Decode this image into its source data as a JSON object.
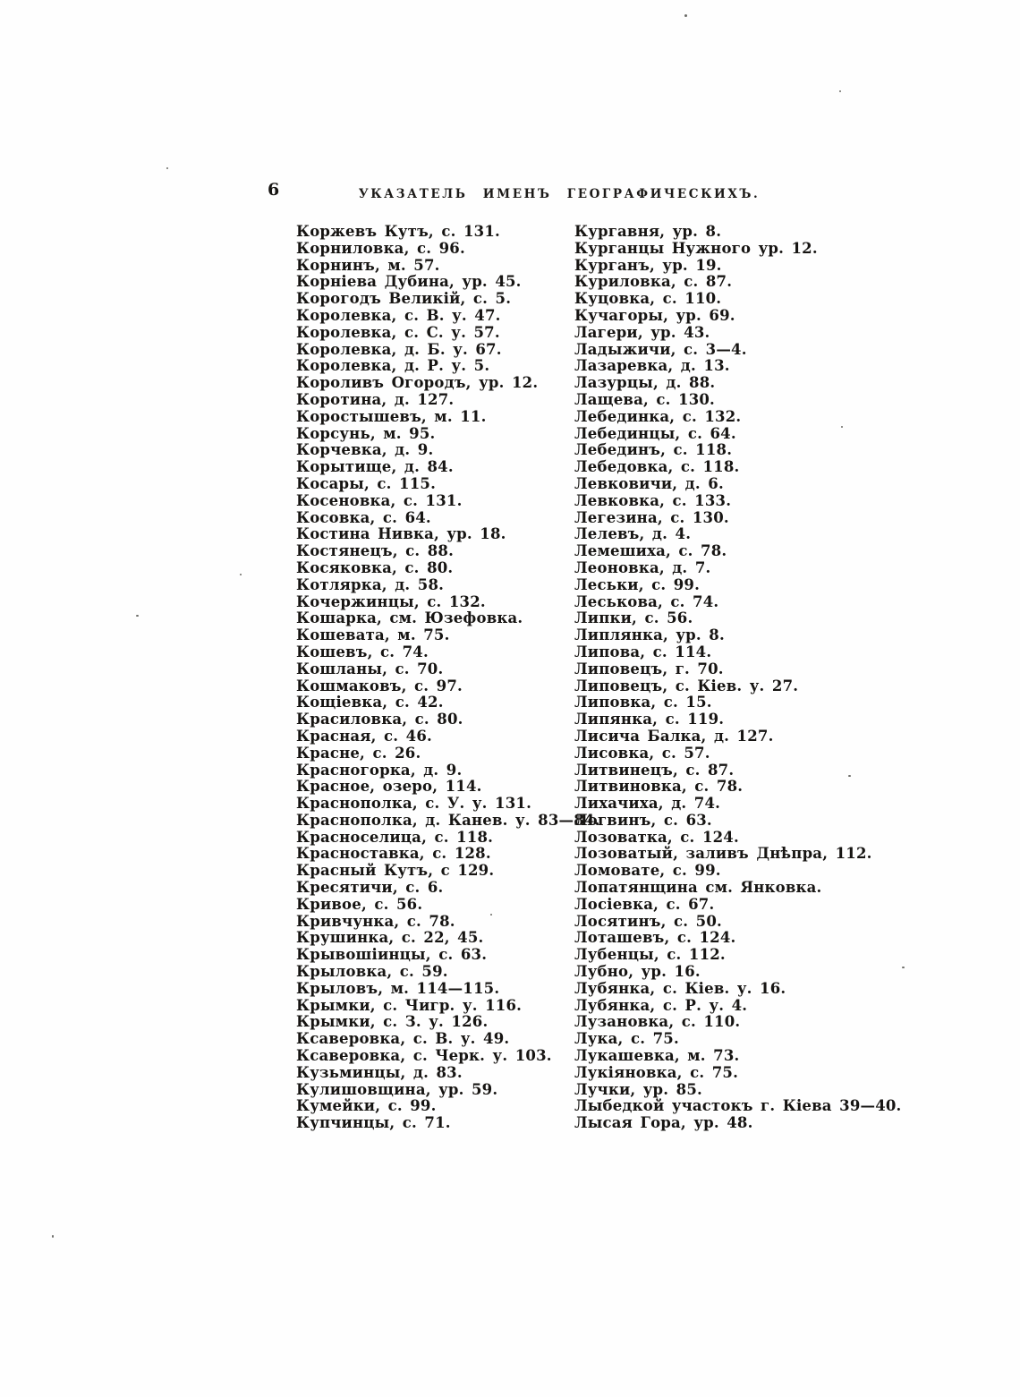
{
  "page": {
    "number": "6",
    "header": "УКАЗАТЕЛЬ ИМЕНЪ ГЕОГРАФИЧЕСКИХЪ."
  },
  "index": {
    "left_column": [
      "Коржевъ Кутъ, с. 131.",
      "Корниловка, с. 96.",
      "Корнинъ, м. 57.",
      "Корніева Дубина, ур. 45.",
      "Корогодъ Великій, с. 5.",
      "Королевка, с. В. у. 47.",
      "Королевка, с. С. у. 57.",
      "Королевка, д. Б. у. 67.",
      "Королевка, д. Р. у. 5.",
      "Короливъ Огородъ, ур. 12.",
      "Коротина, д. 127.",
      "Коростышевъ, м. 11.",
      "Корсунь, м. 95.",
      "Корчевка, д. 9.",
      "Корытище, д. 84.",
      "Косары, с. 115.",
      "Косеновка, с. 131.",
      "Косовка, с. 64.",
      "Костина Нивка, ур. 18.",
      "Костянецъ, с. 88.",
      "Косяковка, с. 80.",
      "Котлярка, д. 58.",
      "Кочержинцы, с. 132.",
      "Кошарка, см. Юзефовка.",
      "Кошевата, м. 75.",
      "Кошевъ, с. 74.",
      "Кошланы, с. 70.",
      "Кошмаковъ, с. 97.",
      "Кощіевка, с. 42.",
      "Красиловка, с. 80.",
      "Красная, с. 46.",
      "Красне, с. 26.",
      "Красногорка, д. 9.",
      "Красное, озеро, 114.",
      "Краснополка, с. У. у. 131.",
      "Краснополка, д. Канев. у. 83—84.",
      "Красноселица, с. 118.",
      "Красноставка, с. 128.",
      "Красный Кутъ, с 129.",
      "Кресятичи, с. 6.",
      "Кривое, с. 56.",
      "Кривчунка, с. 78.",
      "Крушинка, с. 22, 45.",
      "Крывошіинцы, с. 63.",
      "Крыловка, с. 59.",
      "Крыловъ, м. 114—115.",
      "Крымки, с. Чигр. у. 116.",
      "Крымки, с. З. у. 126.",
      "Ксаверовка, с. В. у. 49.",
      "Ксаверовка, с. Черк. у. 103.",
      "Кузьминцы, д. 83.",
      "Кулишовщина, ур. 59.",
      "Кумейки, с. 99.",
      "Купчинцы, с. 71."
    ],
    "right_column": [
      "Кургавня, ур. 8.",
      "Курганцы Нужного ур. 12.",
      "Курганъ, ур. 19.",
      "Куриловка, с. 87.",
      "Куцовка, с. 110.",
      "Кучагоры, ур. 69.",
      "Лагери, ур. 43.",
      "Ладыжичи, с. 3—4.",
      "Лазаревка, д. 13.",
      "Лазурцы, д. 88.",
      "Лащева, с. 130.",
      "Лебединка, с. 132.",
      "Лебединцы, с. 64.",
      "Лебединъ, с. 118.",
      "Лебедовка, с. 118.",
      "Левковичи, д. 6.",
      "Левковка, с. 133.",
      "Легезина, с. 130.",
      "Лелевъ, д. 4.",
      "Лемешиха, с. 78.",
      "Леоновка, д. 7.",
      "Леськи, с. 99.",
      "Леськова, с. 74.",
      "Липки, с. 56.",
      "Липлянка, ур. 8.",
      "Липова, с. 114.",
      "Липовецъ, г. 70.",
      "Липовецъ, с. Кіев. у. 27.",
      "Липовка, с. 15.",
      "Липянка, с. 119.",
      "Лисича Балка, д. 127.",
      "Лисовка, с. 57.",
      "Литвинецъ, с. 87.",
      "Литвиновка, с. 78.",
      "Лихачиха, д. 74.",
      "Логвинъ, с. 63.",
      "Лозоватка, с. 124.",
      "Лозоватый, заливъ Днѣпра, 112.",
      "Ломовате, с. 99.",
      "Лопатянщина см. Янковка.",
      "Лосіевка, с. 67.",
      "Лосятинъ, с. 50.",
      "Лоташевъ, с. 124.",
      "Лубенцы, с. 112.",
      "Лубно, ур. 16.",
      "Лубянка, с. Кіев. у. 16.",
      "Лубянка, с. Р. у. 4.",
      "Лузановка, с. 110.",
      "Лука, с. 75.",
      "Лукашевка, м. 73.",
      "Лукіяновка, с. 75.",
      "Лучки, ур. 85.",
      "Лыбедкой участокъ г. Кіева 39—40.",
      "Лысая Гора, ур. 48."
    ]
  }
}
